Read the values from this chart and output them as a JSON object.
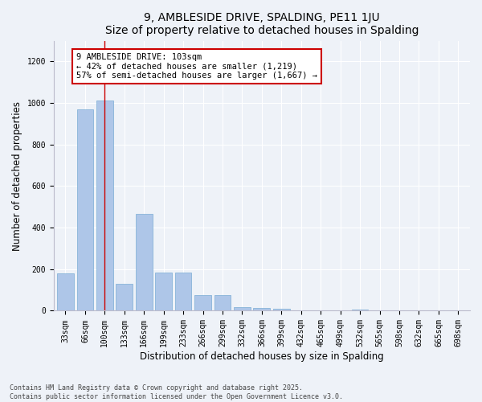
{
  "title": "9, AMBLESIDE DRIVE, SPALDING, PE11 1JU",
  "subtitle": "Size of property relative to detached houses in Spalding",
  "xlabel": "Distribution of detached houses by size in Spalding",
  "ylabel": "Number of detached properties",
  "categories": [
    "33sqm",
    "66sqm",
    "100sqm",
    "133sqm",
    "166sqm",
    "199sqm",
    "233sqm",
    "266sqm",
    "299sqm",
    "332sqm",
    "366sqm",
    "399sqm",
    "432sqm",
    "465sqm",
    "499sqm",
    "532sqm",
    "565sqm",
    "598sqm",
    "632sqm",
    "665sqm",
    "698sqm"
  ],
  "values": [
    178,
    968,
    1010,
    130,
    465,
    185,
    185,
    75,
    75,
    18,
    14,
    10,
    0,
    0,
    0,
    5,
    0,
    0,
    0,
    0,
    0
  ],
  "bar_color": "#aec6e8",
  "bar_edge_color": "#7aadd4",
  "vline_x": 2.0,
  "vline_color": "#cc0000",
  "annotation_text": "9 AMBLESIDE DRIVE: 103sqm\n← 42% of detached houses are smaller (1,219)\n57% of semi-detached houses are larger (1,667) →",
  "annotation_box_color": "#ffffff",
  "annotation_box_edge_color": "#cc0000",
  "ylim": [
    0,
    1300
  ],
  "yticks": [
    0,
    200,
    400,
    600,
    800,
    1000,
    1200
  ],
  "footnote": "Contains HM Land Registry data © Crown copyright and database right 2025.\nContains public sector information licensed under the Open Government Licence v3.0.",
  "background_color": "#eef2f8",
  "grid_color": "#ffffff",
  "title_fontsize": 10,
  "axis_label_fontsize": 8.5,
  "tick_fontsize": 7,
  "annotation_fontsize": 7.5
}
